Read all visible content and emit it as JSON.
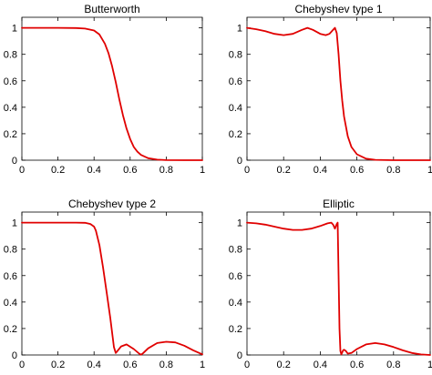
{
  "colors": {
    "curve": "#e00000",
    "axes": "#000000",
    "background": "#ffffff"
  },
  "chart_data": [
    {
      "type": "line",
      "title": "Butterworth",
      "xlim": [
        0,
        1
      ],
      "ylim": [
        0,
        1.08
      ],
      "xticks": [
        0,
        0.2,
        0.4,
        0.6,
        0.8,
        1
      ],
      "xtick_labels": [
        "0",
        "0.2",
        "0.4",
        "0.6",
        "0.8",
        "1"
      ],
      "yticks": [
        0,
        0.2,
        0.4,
        0.6,
        0.8,
        1
      ],
      "ytick_labels": [
        "0",
        "0.2",
        "0.4",
        "0.6",
        "0.8",
        "1"
      ],
      "grid": false,
      "series": [
        {
          "x": [
            0,
            0.1,
            0.2,
            0.3,
            0.35,
            0.4,
            0.43,
            0.46,
            0.48,
            0.5,
            0.52,
            0.54,
            0.56,
            0.58,
            0.6,
            0.62,
            0.64,
            0.66,
            0.7,
            0.75,
            0.8,
            0.9,
            1
          ],
          "y": [
            1,
            1,
            1,
            0.999,
            0.995,
            0.98,
            0.95,
            0.88,
            0.81,
            0.71,
            0.59,
            0.46,
            0.34,
            0.24,
            0.16,
            0.1,
            0.065,
            0.04,
            0.015,
            0.004,
            0.001,
            0,
            0
          ]
        }
      ]
    },
    {
      "type": "line",
      "title": "Chebyshev type 1",
      "xlim": [
        0,
        1
      ],
      "ylim": [
        0,
        1.08
      ],
      "xticks": [
        0,
        0.2,
        0.4,
        0.6,
        0.8,
        1
      ],
      "xtick_labels": [
        "0",
        "0.2",
        "0.4",
        "0.6",
        "0.8",
        "1"
      ],
      "yticks": [
        0,
        0.2,
        0.4,
        0.6,
        0.8,
        1
      ],
      "ytick_labels": [
        "0",
        "0.2",
        "0.4",
        "0.6",
        "0.8",
        "1"
      ],
      "grid": false,
      "series": [
        {
          "x": [
            0,
            0.05,
            0.1,
            0.15,
            0.2,
            0.25,
            0.3,
            0.33,
            0.36,
            0.4,
            0.43,
            0.45,
            0.47,
            0.48,
            0.49,
            0.5,
            0.51,
            0.52,
            0.53,
            0.55,
            0.57,
            0.6,
            0.65,
            0.7,
            0.8,
            1
          ],
          "y": [
            1,
            0.99,
            0.975,
            0.955,
            0.945,
            0.955,
            0.985,
            1,
            0.985,
            0.955,
            0.945,
            0.955,
            0.985,
            1,
            0.96,
            0.8,
            0.6,
            0.45,
            0.33,
            0.18,
            0.1,
            0.045,
            0.012,
            0.003,
            0,
            0
          ]
        }
      ]
    },
    {
      "type": "line",
      "title": "Chebyshev type 2",
      "xlim": [
        0,
        1
      ],
      "ylim": [
        0,
        1.08
      ],
      "xticks": [
        0,
        0.2,
        0.4,
        0.6,
        0.8,
        1
      ],
      "xtick_labels": [
        "0",
        "0.2",
        "0.4",
        "0.6",
        "0.8",
        "1"
      ],
      "yticks": [
        0,
        0.2,
        0.4,
        0.6,
        0.8,
        1
      ],
      "ytick_labels": [
        "0",
        "0.2",
        "0.4",
        "0.6",
        "0.8",
        "1"
      ],
      "grid": false,
      "series": [
        {
          "x": [
            0,
            0.2,
            0.3,
            0.35,
            0.38,
            0.4,
            0.41,
            0.43,
            0.45,
            0.47,
            0.49,
            0.51,
            0.52,
            0.53,
            0.55,
            0.58,
            0.62,
            0.65,
            0.66,
            0.67,
            0.7,
            0.75,
            0.8,
            0.85,
            0.9,
            0.95,
            1
          ],
          "y": [
            1,
            1,
            1,
            0.999,
            0.99,
            0.97,
            0.94,
            0.83,
            0.66,
            0.47,
            0.28,
            0.06,
            0.015,
            0.03,
            0.065,
            0.08,
            0.045,
            0.01,
            0.002,
            0.012,
            0.05,
            0.09,
            0.1,
            0.095,
            0.07,
            0.035,
            0.005
          ]
        }
      ]
    },
    {
      "type": "line",
      "title": "Elliptic",
      "xlim": [
        0,
        1
      ],
      "ylim": [
        0,
        1.08
      ],
      "xticks": [
        0,
        0.2,
        0.4,
        0.6,
        0.8,
        1
      ],
      "xtick_labels": [
        "0",
        "0.2",
        "0.4",
        "0.6",
        "0.8",
        "1"
      ],
      "yticks": [
        0,
        0.2,
        0.4,
        0.6,
        0.8,
        1
      ],
      "ytick_labels": [
        "0",
        "0.2",
        "0.4",
        "0.6",
        "0.8",
        "1"
      ],
      "grid": false,
      "series": [
        {
          "x": [
            0,
            0.05,
            0.1,
            0.15,
            0.2,
            0.25,
            0.3,
            0.35,
            0.4,
            0.44,
            0.46,
            0.47,
            0.48,
            0.49,
            0.495,
            0.5,
            0.505,
            0.51,
            0.515,
            0.52,
            0.525,
            0.53,
            0.54,
            0.55,
            0.57,
            0.6,
            0.65,
            0.7,
            0.75,
            0.8,
            0.85,
            0.9,
            0.95,
            1
          ],
          "y": [
            1,
            0.995,
            0.985,
            0.97,
            0.955,
            0.945,
            0.945,
            0.955,
            0.975,
            0.995,
            1,
            0.985,
            0.955,
            0.99,
            1,
            0.6,
            0.2,
            0.03,
            0.005,
            0.02,
            0.035,
            0.04,
            0.03,
            0.01,
            0.015,
            0.045,
            0.08,
            0.09,
            0.08,
            0.06,
            0.035,
            0.015,
            0.004,
            0
          ]
        }
      ]
    }
  ]
}
